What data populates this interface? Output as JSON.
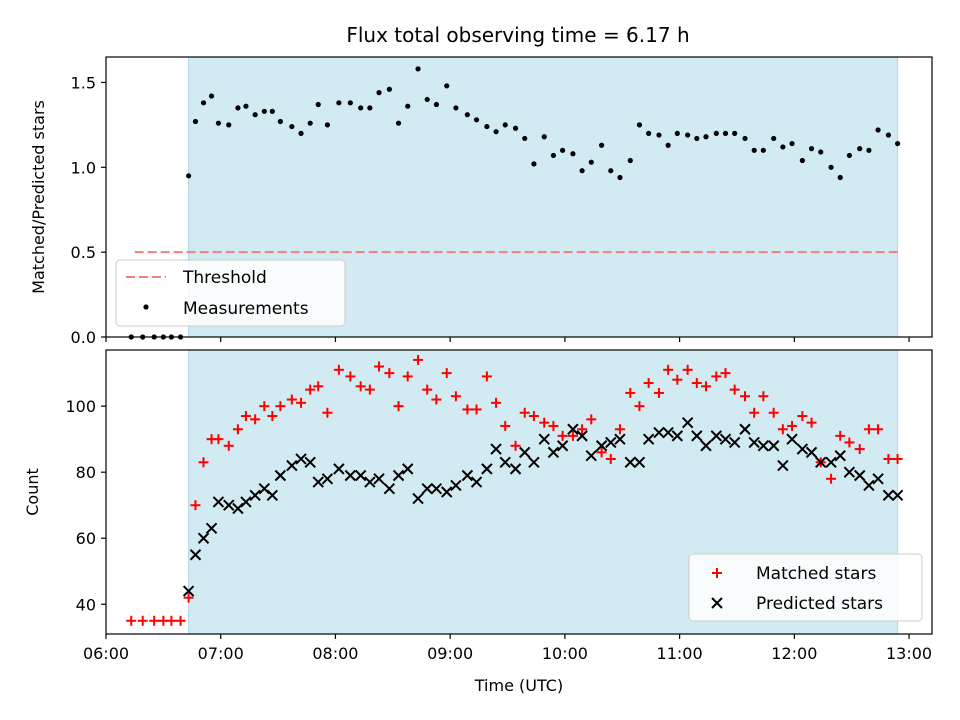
{
  "title": "Flux total observing time = 6.17 h",
  "colors": {
    "band": "#add8e6",
    "threshold": "#f08080",
    "measurement": "#000000",
    "matched": "#ff0000",
    "predicted": "#000000"
  },
  "chart_data": [
    {
      "type": "scatter",
      "ylabel": "Matched/Predicted stars",
      "xlim": [
        6.0,
        13.2
      ],
      "ylim": [
        0,
        1.65
      ],
      "yticks": [
        0.0,
        0.5,
        1.0,
        1.5
      ],
      "ytick_labels": [
        "0.0",
        "0.5",
        "1.0",
        "1.5"
      ],
      "observing_window": [
        6.72,
        12.9
      ],
      "threshold": {
        "label": "Threshold",
        "value": 0.5,
        "x_range": [
          6.25,
          12.9
        ]
      },
      "legend": {
        "placement": "lower-left",
        "entries": [
          "Threshold",
          "Measurements"
        ]
      },
      "series": [
        {
          "name": "Measurements",
          "marker": "dot",
          "x": [
            6.22,
            6.32,
            6.42,
            6.5,
            6.57,
            6.65,
            6.72,
            6.78,
            6.85,
            6.92,
            6.98,
            7.07,
            7.15,
            7.22,
            7.3,
            7.38,
            7.45,
            7.52,
            7.62,
            7.7,
            7.78,
            7.85,
            7.93,
            8.03,
            8.13,
            8.22,
            8.3,
            8.38,
            8.47,
            8.55,
            8.63,
            8.72,
            8.8,
            8.88,
            8.97,
            9.05,
            9.15,
            9.23,
            9.32,
            9.4,
            9.48,
            9.57,
            9.65,
            9.73,
            9.82,
            9.9,
            9.98,
            10.07,
            10.15,
            10.23,
            10.32,
            10.4,
            10.48,
            10.57,
            10.65,
            10.73,
            10.82,
            10.9,
            10.98,
            11.07,
            11.15,
            11.23,
            11.32,
            11.4,
            11.48,
            11.57,
            11.65,
            11.73,
            11.82,
            11.9,
            11.98,
            12.07,
            12.15,
            12.23,
            12.32,
            12.4,
            12.48,
            12.57,
            12.65,
            12.73,
            12.82,
            12.9
          ],
          "y": [
            0.0,
            0.0,
            0.0,
            0.0,
            0.0,
            0.0,
            0.95,
            1.27,
            1.38,
            1.42,
            1.26,
            1.25,
            1.35,
            1.36,
            1.31,
            1.33,
            1.33,
            1.27,
            1.24,
            1.2,
            1.26,
            1.37,
            1.25,
            1.38,
            1.38,
            1.35,
            1.35,
            1.44,
            1.46,
            1.26,
            1.36,
            1.58,
            1.4,
            1.37,
            1.48,
            1.35,
            1.31,
            1.28,
            1.24,
            1.21,
            1.25,
            1.23,
            1.17,
            1.02,
            1.18,
            1.07,
            1.1,
            1.08,
            0.98,
            1.03,
            1.13,
            0.98,
            0.94,
            1.04,
            1.25,
            1.2,
            1.19,
            1.13,
            1.2,
            1.19,
            1.17,
            1.18,
            1.2,
            1.2,
            1.2,
            1.17,
            1.1,
            1.1,
            1.17,
            1.12,
            1.14,
            1.04,
            1.11,
            1.09,
            1.0,
            0.94,
            1.07,
            1.11,
            1.1,
            1.22,
            1.19,
            1.14
          ]
        }
      ]
    },
    {
      "type": "scatter",
      "xlabel": "Time (UTC)",
      "ylabel": "Count",
      "xlim": [
        6.0,
        13.2
      ],
      "ylim": [
        31,
        117
      ],
      "xticks": [
        6,
        7,
        8,
        9,
        10,
        11,
        12,
        13
      ],
      "xtick_labels": [
        "06:00",
        "07:00",
        "08:00",
        "09:00",
        "10:00",
        "11:00",
        "12:00",
        "13:00"
      ],
      "yticks": [
        40,
        60,
        80,
        100
      ],
      "ytick_labels": [
        "40",
        "60",
        "80",
        "100"
      ],
      "observing_window": [
        6.72,
        12.9
      ],
      "legend": {
        "placement": "lower-right",
        "entries": [
          "Matched stars",
          "Predicted stars"
        ]
      },
      "series": [
        {
          "name": "Matched stars",
          "marker": "plus",
          "x": [
            6.22,
            6.32,
            6.42,
            6.5,
            6.57,
            6.65,
            6.72,
            6.78,
            6.85,
            6.92,
            6.98,
            7.07,
            7.15,
            7.22,
            7.3,
            7.38,
            7.45,
            7.52,
            7.62,
            7.7,
            7.78,
            7.85,
            7.93,
            8.03,
            8.13,
            8.22,
            8.3,
            8.38,
            8.47,
            8.55,
            8.63,
            8.72,
            8.8,
            8.88,
            8.97,
            9.05,
            9.15,
            9.23,
            9.32,
            9.4,
            9.48,
            9.57,
            9.65,
            9.73,
            9.82,
            9.9,
            9.98,
            10.07,
            10.15,
            10.23,
            10.32,
            10.4,
            10.48,
            10.57,
            10.65,
            10.73,
            10.82,
            10.9,
            10.98,
            11.07,
            11.15,
            11.23,
            11.32,
            11.4,
            11.48,
            11.57,
            11.65,
            11.73,
            11.82,
            11.9,
            11.98,
            12.07,
            12.15,
            12.23,
            12.32,
            12.4,
            12.48,
            12.57,
            12.65,
            12.73,
            12.82,
            12.9
          ],
          "y": [
            35,
            35,
            35,
            35,
            35,
            35,
            42,
            70,
            83,
            90,
            90,
            88,
            93,
            97,
            96,
            100,
            97,
            100,
            102,
            101,
            105,
            106,
            98,
            111,
            109,
            106,
            105,
            112,
            110,
            100,
            109,
            114,
            105,
            102,
            110,
            103,
            99,
            99,
            109,
            101,
            94,
            88,
            98,
            97,
            95,
            94,
            91,
            91,
            93,
            96,
            86,
            84,
            93,
            104,
            100,
            107,
            104,
            111,
            108,
            111,
            107,
            106,
            109,
            110,
            105,
            103,
            98,
            103,
            98,
            93,
            94,
            97,
            95,
            83,
            78,
            91,
            89,
            87,
            93,
            93,
            84,
            84
          ]
        },
        {
          "name": "Predicted stars",
          "marker": "cross",
          "x": [
            6.72,
            6.78,
            6.85,
            6.92,
            6.98,
            7.07,
            7.15,
            7.22,
            7.3,
            7.38,
            7.45,
            7.52,
            7.62,
            7.7,
            7.78,
            7.85,
            7.93,
            8.03,
            8.13,
            8.22,
            8.3,
            8.38,
            8.47,
            8.55,
            8.63,
            8.72,
            8.8,
            8.88,
            8.97,
            9.05,
            9.15,
            9.23,
            9.32,
            9.4,
            9.48,
            9.57,
            9.65,
            9.73,
            9.82,
            9.9,
            9.98,
            10.07,
            10.15,
            10.23,
            10.32,
            10.4,
            10.48,
            10.57,
            10.65,
            10.73,
            10.82,
            10.9,
            10.98,
            11.07,
            11.15,
            11.23,
            11.32,
            11.4,
            11.48,
            11.57,
            11.65,
            11.73,
            11.82,
            11.9,
            11.98,
            12.07,
            12.15,
            12.23,
            12.32,
            12.4,
            12.48,
            12.57,
            12.65,
            12.73,
            12.82,
            12.9
          ],
          "y": [
            44,
            55,
            60,
            63,
            71,
            70,
            69,
            71,
            73,
            75,
            73,
            79,
            82,
            84,
            83,
            77,
            78,
            81,
            79,
            79,
            77,
            78,
            75,
            79,
            81,
            72,
            75,
            75,
            74,
            76,
            79,
            77,
            81,
            87,
            83,
            81,
            86,
            83,
            90,
            86,
            88,
            93,
            91,
            85,
            88,
            89,
            90,
            83,
            83,
            90,
            92,
            92,
            91,
            95,
            91,
            88,
            91,
            90,
            89,
            93,
            89,
            88,
            88,
            82,
            90,
            87,
            86,
            83,
            83,
            85,
            80,
            79,
            76,
            78,
            73,
            73
          ]
        }
      ]
    }
  ]
}
